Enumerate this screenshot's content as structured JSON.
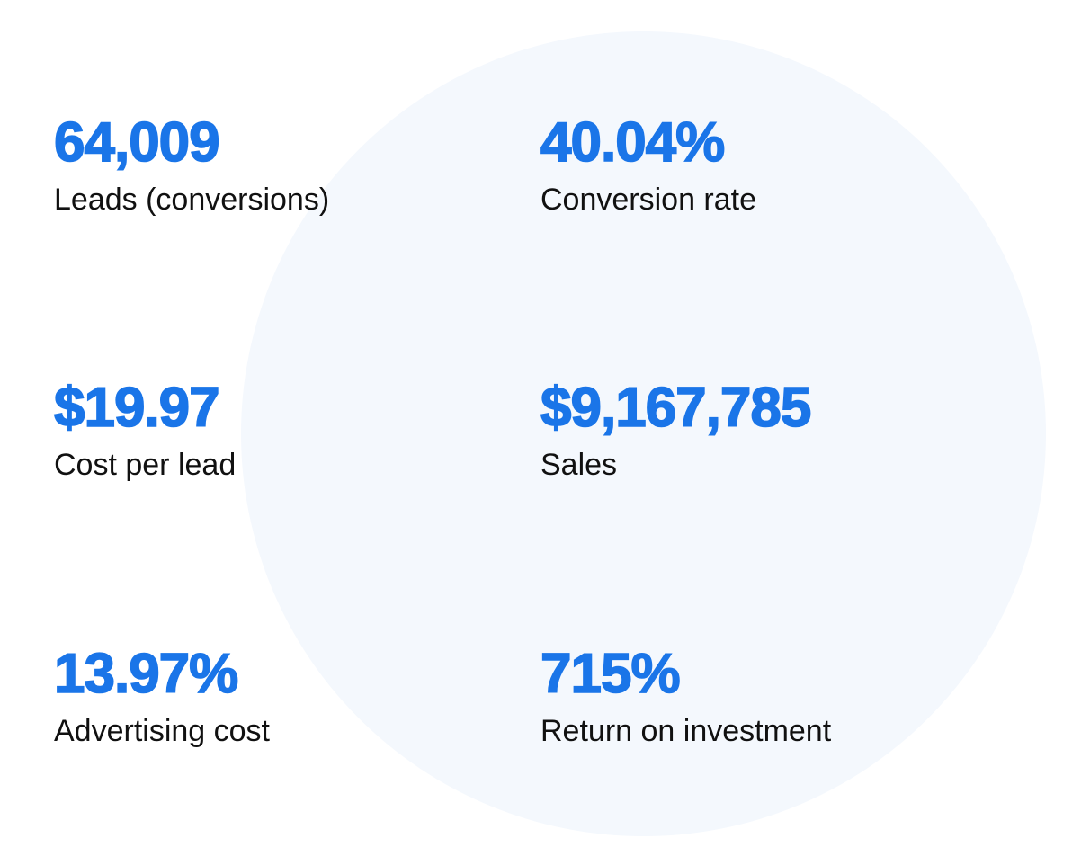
{
  "stats": [
    {
      "value": "64,009",
      "label": "Leads (conversions)"
    },
    {
      "value": "40.04%",
      "label": "Conversion rate"
    },
    {
      "value": "$19.97",
      "label": "Cost per lead"
    },
    {
      "value": "$9,167,785",
      "label": "Sales"
    },
    {
      "value": "13.97%",
      "label": "Advertising cost"
    },
    {
      "value": "715%",
      "label": "Return on investment"
    }
  ],
  "colors": {
    "accent": "#1a75e8",
    "label": "#111111",
    "circle": "#f4f8fd",
    "background": "#ffffff"
  }
}
